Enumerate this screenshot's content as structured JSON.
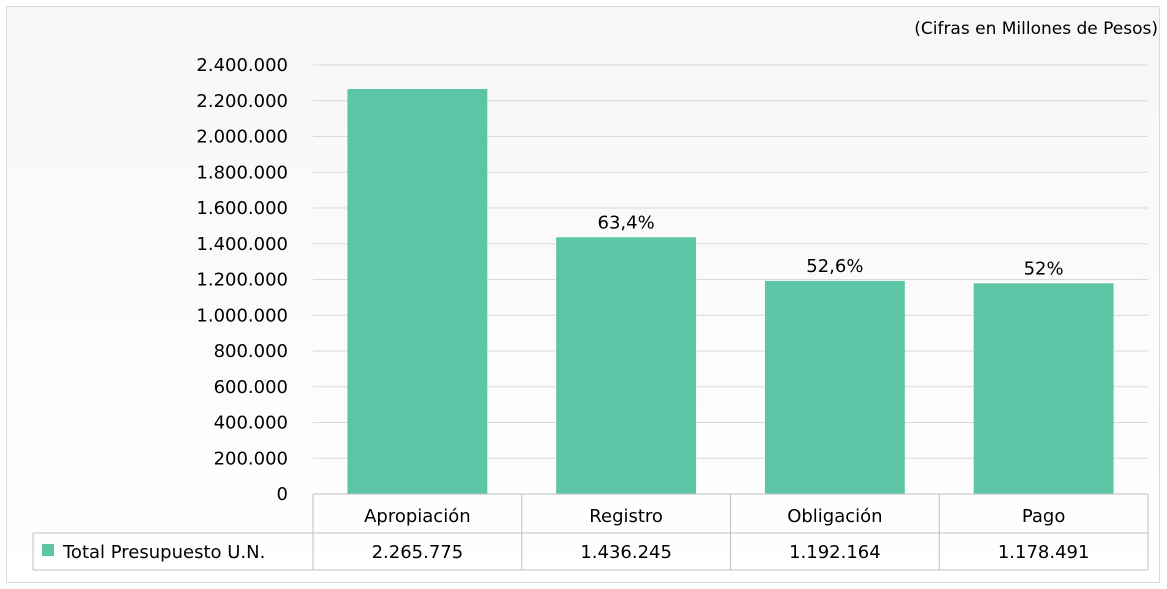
{
  "chart_data": {
    "type": "bar",
    "note": "(Cifras en Millones de Pesos)",
    "categories": [
      "Apropiación",
      "Registro",
      "Obligación",
      "Pago"
    ],
    "series": [
      {
        "name": "Total Presupuesto U.N.",
        "values": [
          2265775,
          1436245,
          1192164,
          1178491
        ],
        "display_values": [
          "2.265.775",
          "1.436.245",
          "1.192.164",
          "1.178.491"
        ],
        "color": "#5cc5a6"
      }
    ],
    "data_labels": [
      "",
      "63,4%",
      "52,6%",
      "52%"
    ],
    "ylim": [
      0,
      2400000
    ],
    "yticks": [
      0,
      200000,
      400000,
      600000,
      800000,
      1000000,
      1200000,
      1400000,
      1600000,
      1800000,
      2000000,
      2200000,
      2400000
    ],
    "ytick_labels": [
      "0",
      "200.000",
      "400.000",
      "600.000",
      "800.000",
      "1.000.000",
      "1.200.000",
      "1.400.000",
      "1.600.000",
      "1.800.000",
      "2.000.000",
      "2.200.000",
      "2.400.000"
    ],
    "grid": true,
    "data_table": true,
    "legend_placement": "data-table-left"
  }
}
